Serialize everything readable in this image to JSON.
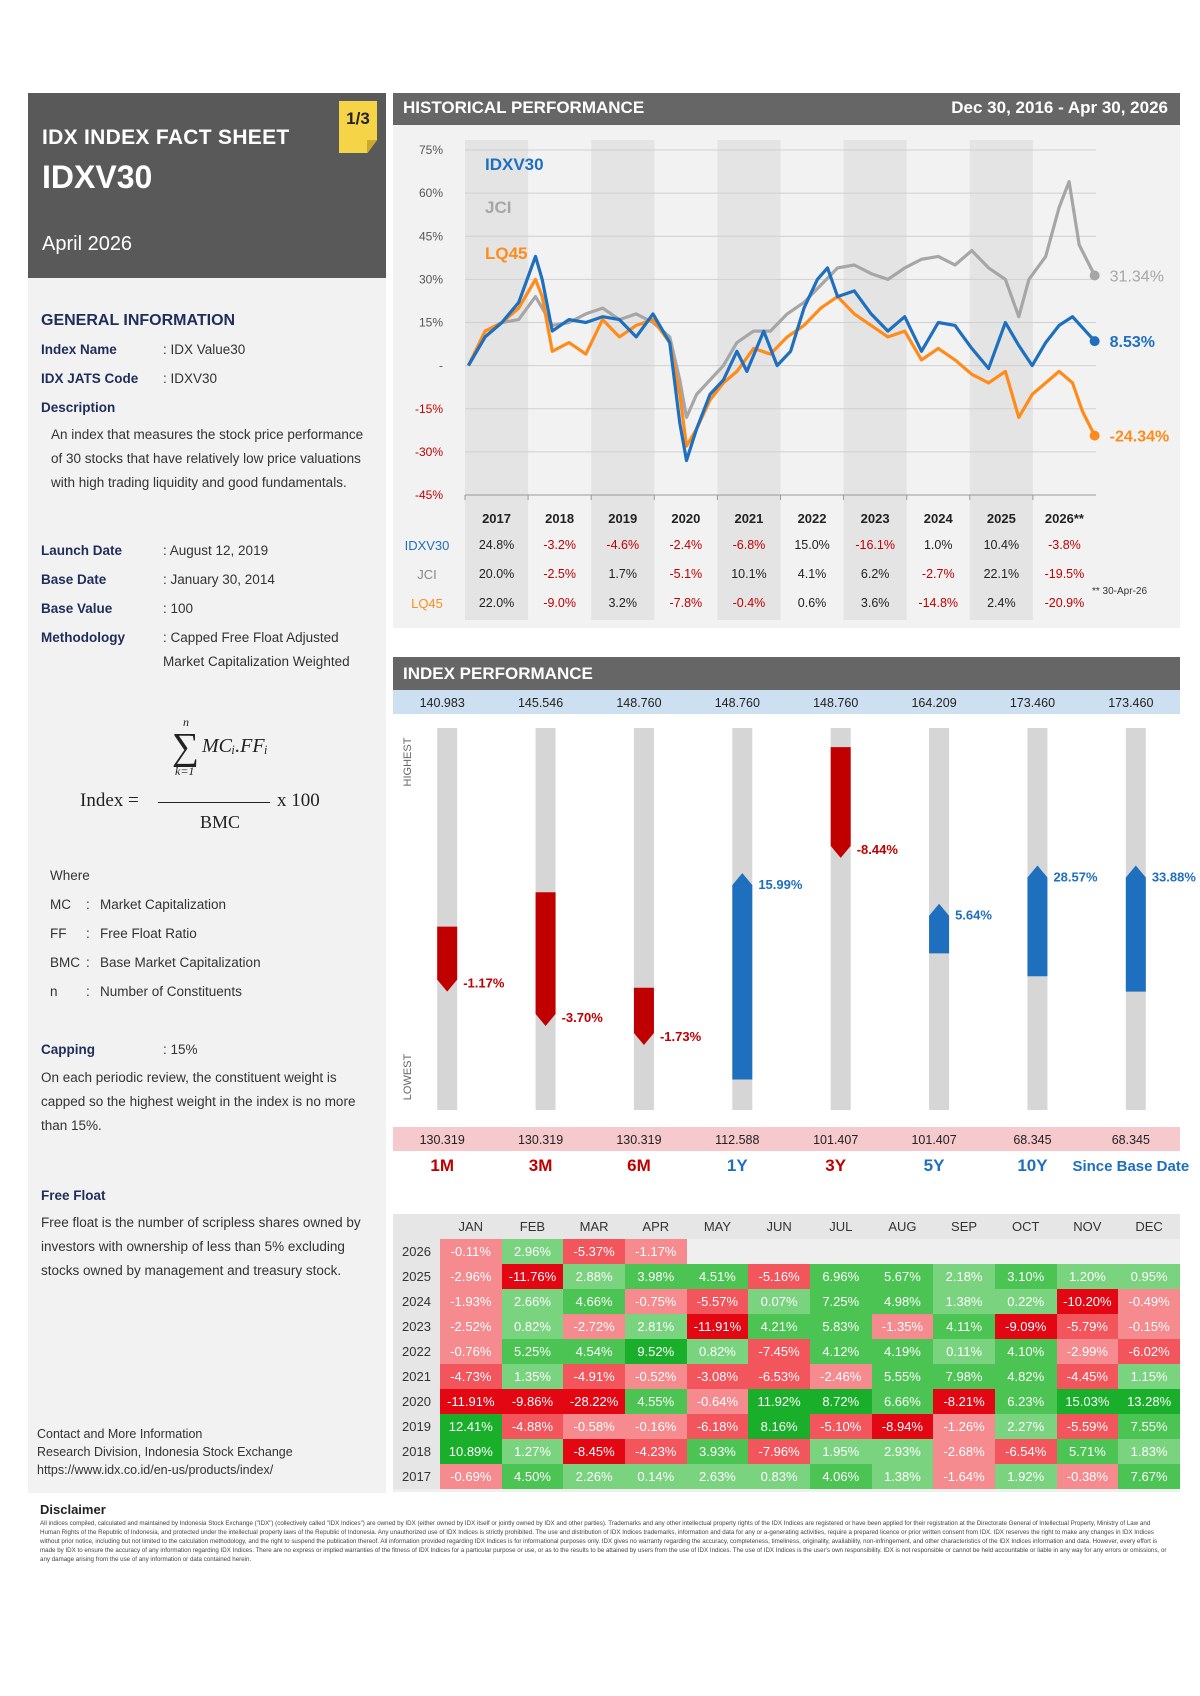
{
  "header": {
    "title": "IDX INDEX FACT SHEET",
    "code": "IDXV30",
    "month": "April 2026",
    "page": "1/3"
  },
  "general": {
    "section_title": "GENERAL INFORMATION",
    "index_name_label": "Index Name",
    "index_name": ": IDX Value30",
    "jats_label": "IDX JATS Code",
    "jats": ": IDXV30",
    "description_label": "Description",
    "description": "An index that measures the stock price performance of 30 stocks that have relatively low price valuations with high trading liquidity and good fundamentals.",
    "launch_label": "Launch Date",
    "launch": ": August 12, 2019",
    "base_date_label": "Base Date",
    "base_date": ": January 30, 2014",
    "base_value_label": "Base Value",
    "base_value": ": 100",
    "methodology_label": "Methodology",
    "methodology": ": Capped Free Float Adjusted Market Capitalization Weighted"
  },
  "formula": {
    "n": "n",
    "k": "k=1",
    "numerator": "MCᵢ.FFᵢ",
    "lhs": "Index =",
    "denominator": "BMC",
    "rhs": "x 100"
  },
  "where": {
    "title": "Where",
    "rows": [
      {
        "sym": "MC",
        "sep": ":",
        "desc": "Market Capitalization"
      },
      {
        "sym": "FF",
        "sep": ":",
        "desc": "Free Float Ratio"
      },
      {
        "sym": "BMC",
        "sep": ":",
        "desc": "Base Market Capitalization"
      },
      {
        "sym": "n",
        "sep": ":",
        "desc": "Number of Constituents"
      }
    ]
  },
  "capping": {
    "label": "Capping",
    "value": ": 15%",
    "text": "On each periodic review, the constituent weight is capped so the highest weight in the index is no more than 15%."
  },
  "free_float": {
    "label": "Free Float",
    "text": "Free float is the number of scripless shares owned by investors with ownership of less than 5% excluding stocks owned by management and treasury stock."
  },
  "contact": {
    "title": "Contact and More Information",
    "org": "Research Division, Indonesia Stock Exchange",
    "url": "https://www.idx.co.id/en-us/products/index/"
  },
  "historical": {
    "title": "HISTORICAL PERFORMANCE",
    "range": "Dec 30, 2016 - Apr 30, 2026",
    "footnote": "** 30-Apr-26"
  },
  "chart_data": {
    "type": "line",
    "ylim": [
      -45,
      75
    ],
    "yticks": [
      "75%",
      "60%",
      "45%",
      "30%",
      "15%",
      "-",
      "-15%",
      "-30%",
      "-45%"
    ],
    "years": [
      "2017",
      "2018",
      "2019",
      "2020",
      "2021",
      "2022",
      "2023",
      "2024",
      "2025",
      "2026**"
    ],
    "series": [
      {
        "name": "IDXV30",
        "color": "#1f6fbf",
        "end_label": "8.53%",
        "x": [
          2017.0,
          2017.25,
          2017.5,
          2017.75,
          2018.0,
          2018.1,
          2018.25,
          2018.5,
          2018.75,
          2019.0,
          2019.25,
          2019.5,
          2019.75,
          2020.0,
          2020.15,
          2020.25,
          2020.4,
          2020.6,
          2020.8,
          2021.0,
          2021.15,
          2021.4,
          2021.6,
          2021.8,
          2022.0,
          2022.2,
          2022.35,
          2022.5,
          2022.75,
          2023.0,
          2023.25,
          2023.5,
          2023.75,
          2024.0,
          2024.25,
          2024.5,
          2024.75,
          2025.0,
          2025.2,
          2025.4,
          2025.6,
          2025.8,
          2026.0,
          2026.33
        ],
        "y": [
          0,
          10,
          15,
          22,
          38,
          30,
          12,
          16,
          15,
          17,
          16,
          10,
          18,
          8,
          -20,
          -33,
          -22,
          -10,
          -5,
          5,
          -2,
          12,
          0,
          5,
          20,
          30,
          34,
          24,
          26,
          18,
          12,
          17,
          5,
          15,
          14,
          6,
          -1,
          15,
          7,
          0,
          8,
          14,
          17,
          8.53
        ]
      },
      {
        "name": "JCI",
        "color": "#a6a6a6",
        "end_label": "31.34%",
        "x": [
          2017.0,
          2017.25,
          2017.5,
          2017.75,
          2018.0,
          2018.1,
          2018.25,
          2018.5,
          2018.75,
          2019.0,
          2019.25,
          2019.5,
          2019.75,
          2020.0,
          2020.15,
          2020.25,
          2020.4,
          2020.6,
          2020.8,
          2021.0,
          2021.25,
          2021.5,
          2021.75,
          2022.0,
          2022.25,
          2022.5,
          2022.75,
          2023.0,
          2023.25,
          2023.5,
          2023.75,
          2024.0,
          2024.25,
          2024.5,
          2024.75,
          2025.0,
          2025.2,
          2025.35,
          2025.6,
          2025.8,
          2025.95,
          2026.1,
          2026.33
        ],
        "y": [
          0,
          10,
          15,
          16,
          24,
          20,
          14,
          15,
          18,
          20,
          16,
          18,
          15,
          10,
          -5,
          -18,
          -10,
          -5,
          0,
          8,
          12,
          12,
          18,
          22,
          28,
          34,
          35,
          32,
          30,
          34,
          37,
          38,
          35,
          40,
          34,
          30,
          17,
          30,
          38,
          55,
          64,
          42,
          31.34
        ]
      },
      {
        "name": "LQ45",
        "color": "#ff8c1a",
        "end_label": "-24.34%",
        "x": [
          2017.0,
          2017.25,
          2017.5,
          2017.75,
          2018.0,
          2018.1,
          2018.25,
          2018.5,
          2018.75,
          2019.0,
          2019.25,
          2019.5,
          2019.75,
          2020.0,
          2020.15,
          2020.25,
          2020.4,
          2020.6,
          2020.8,
          2021.0,
          2021.25,
          2021.5,
          2021.75,
          2022.0,
          2022.25,
          2022.5,
          2022.75,
          2023.0,
          2023.25,
          2023.5,
          2023.75,
          2024.0,
          2024.25,
          2024.5,
          2024.75,
          2025.0,
          2025.2,
          2025.4,
          2025.6,
          2025.8,
          2026.0,
          2026.15,
          2026.33
        ],
        "y": [
          0,
          12,
          15,
          20,
          30,
          24,
          5,
          8,
          4,
          16,
          10,
          14,
          16,
          8,
          -10,
          -28,
          -22,
          -12,
          -6,
          -2,
          6,
          4,
          10,
          14,
          20,
          24,
          18,
          14,
          10,
          12,
          2,
          6,
          2,
          -3,
          -6,
          -2,
          -18,
          -10,
          -6,
          -2,
          -6,
          -16,
          -24.34
        ]
      }
    ],
    "table": {
      "headers": [
        "",
        "2017",
        "2018",
        "2019",
        "2020",
        "2021",
        "2022",
        "2023",
        "2024",
        "2025",
        "2026**"
      ],
      "rows": [
        {
          "name": "IDXV30",
          "color": "#1f6fbf",
          "values": [
            "24.8%",
            "-3.2%",
            "-4.6%",
            "-2.4%",
            "-6.8%",
            "15.0%",
            "-16.1%",
            "1.0%",
            "10.4%",
            "-3.8%"
          ]
        },
        {
          "name": "JCI",
          "color": "#888888",
          "values": [
            "20.0%",
            "-2.5%",
            "1.7%",
            "-5.1%",
            "10.1%",
            "4.1%",
            "6.2%",
            "-2.7%",
            "22.1%",
            "-19.5%"
          ]
        },
        {
          "name": "LQ45",
          "color": "#ff8c1a",
          "values": [
            "22.0%",
            "-9.0%",
            "3.2%",
            "-7.8%",
            "-0.4%",
            "0.6%",
            "3.6%",
            "-14.8%",
            "2.4%",
            "-20.9%"
          ]
        }
      ]
    }
  },
  "index_performance": {
    "title": "INDEX PERFORMANCE",
    "highest_label": "HIGHEST",
    "lowest_label": "LOWEST",
    "periods": [
      {
        "label": "1M",
        "high": "140.983",
        "low": "130.319",
        "ret": "-1.17%",
        "ret_value": -1.17,
        "pos_top": 0.52,
        "pos_bot": 0.69
      },
      {
        "label": "3M",
        "high": "145.546",
        "low": "130.319",
        "ret": "-3.70%",
        "ret_value": -3.7,
        "pos_top": 0.43,
        "pos_bot": 0.78
      },
      {
        "label": "6M",
        "high": "148.760",
        "low": "130.319",
        "ret": "-1.73%",
        "ret_value": -1.73,
        "pos_top": 0.68,
        "pos_bot": 0.83
      },
      {
        "label": "1Y",
        "high": "148.760",
        "low": "112.588",
        "ret": "15.99%",
        "ret_value": 15.99,
        "pos_top": 0.38,
        "pos_bot": 0.92
      },
      {
        "label": "3Y",
        "high": "148.760",
        "low": "101.407",
        "ret": "-8.44%",
        "ret_value": -8.44,
        "pos_top": 0.05,
        "pos_bot": 0.34
      },
      {
        "label": "5Y",
        "high": "164.209",
        "low": "101.407",
        "ret": "5.64%",
        "ret_value": 5.64,
        "pos_top": 0.46,
        "pos_bot": 0.59
      },
      {
        "label": "10Y",
        "high": "173.460",
        "low": "68.345",
        "ret": "28.57%",
        "ret_value": 28.57,
        "pos_top": 0.36,
        "pos_bot": 0.65
      },
      {
        "label": "Since Base Date",
        "high": "173.460",
        "low": "68.345",
        "ret": "33.88%",
        "ret_value": 33.88,
        "pos_top": 0.36,
        "pos_bot": 0.69
      }
    ]
  },
  "monthly": {
    "months": [
      "JAN",
      "FEB",
      "MAR",
      "APR",
      "MAY",
      "JUN",
      "JUL",
      "AUG",
      "SEP",
      "OCT",
      "NOV",
      "DEC"
    ],
    "rows": [
      {
        "year": "2026",
        "values": [
          "-0.11%",
          "2.96%",
          "-5.37%",
          "-1.17%",
          "",
          "",
          "",
          "",
          "",
          "",
          "",
          ""
        ]
      },
      {
        "year": "2025",
        "values": [
          "-2.96%",
          "-11.76%",
          "2.88%",
          "3.98%",
          "4.51%",
          "-5.16%",
          "6.96%",
          "5.67%",
          "2.18%",
          "3.10%",
          "1.20%",
          "0.95%"
        ]
      },
      {
        "year": "2024",
        "values": [
          "-1.93%",
          "2.66%",
          "4.66%",
          "-0.75%",
          "-5.57%",
          "0.07%",
          "7.25%",
          "4.98%",
          "1.38%",
          "0.22%",
          "-10.20%",
          "-0.49%"
        ]
      },
      {
        "year": "2023",
        "values": [
          "-2.52%",
          "0.82%",
          "-2.72%",
          "2.81%",
          "-11.91%",
          "4.21%",
          "5.83%",
          "-1.35%",
          "4.11%",
          "-9.09%",
          "-5.79%",
          "-0.15%"
        ]
      },
      {
        "year": "2022",
        "values": [
          "-0.76%",
          "5.25%",
          "4.54%",
          "9.52%",
          "0.82%",
          "-7.45%",
          "4.12%",
          "4.19%",
          "0.11%",
          "4.10%",
          "-2.99%",
          "-6.02%"
        ]
      },
      {
        "year": "2021",
        "values": [
          "-4.73%",
          "1.35%",
          "-4.91%",
          "-0.52%",
          "-3.08%",
          "-6.53%",
          "-2.46%",
          "5.55%",
          "7.98%",
          "4.82%",
          "-4.45%",
          "1.15%"
        ]
      },
      {
        "year": "2020",
        "values": [
          "-11.91%",
          "-9.86%",
          "-28.22%",
          "4.55%",
          "-0.64%",
          "11.92%",
          "8.72%",
          "6.66%",
          "-8.21%",
          "6.23%",
          "15.03%",
          "13.28%"
        ]
      },
      {
        "year": "2019",
        "values": [
          "12.41%",
          "-4.88%",
          "-0.58%",
          "-0.16%",
          "-6.18%",
          "8.16%",
          "-5.10%",
          "-8.94%",
          "-1.26%",
          "2.27%",
          "-5.59%",
          "7.55%"
        ]
      },
      {
        "year": "2018",
        "values": [
          "10.89%",
          "1.27%",
          "-8.45%",
          "-4.23%",
          "3.93%",
          "-7.96%",
          "1.95%",
          "2.93%",
          "-2.68%",
          "-6.54%",
          "5.71%",
          "1.83%"
        ]
      },
      {
        "year": "2017",
        "values": [
          "-0.69%",
          "4.50%",
          "2.26%",
          "0.14%",
          "2.63%",
          "0.83%",
          "4.06%",
          "1.38%",
          "-1.64%",
          "1.92%",
          "-0.38%",
          "7.67%"
        ]
      }
    ]
  },
  "disclaimer": {
    "title": "Disclaimer",
    "text": "All indices compiled, calculated and maintained by Indonesia Stock Exchange (\"IDX\") (collectively called \"IDX Indices\") are owned by IDX (either owned by IDX itself or jointly owned by IDX and other parties). Trademarks and any other intellectual property rights of the IDX Indices are registered or have been applied for their registration at the Directorate General of Intellectual Property, Ministry of Law and Human Rights of the Republic of Indonesia, and protected under the intellectual property laws of the Republic of Indonesia. Any unauthorized use of IDX Indices is strictly prohibited. The use and distribution of IDX Indices trademarks, information and data for any or a-generating activities, require a prepared licence or prior written consent from IDX. IDX reserves the right to make any changes in IDX Indices without prior notice, including but not limited to the calculation methodology, and the right to suspend the publication thereof. All information provided regarding IDX Indices is for informational purposes only. IDX gives no warranty regarding the accuracy, completeness, timeliness, originality, availability, non-infringement, and other characteristics of the IDX Indices information and data. However, every effort is made by IDX to ensure the accuracy of any information regarding IDX Indices. There are no express or implied warranties of the fitness of IDX Indices for a particular purpose or use, or as to the results to be attained by users from the use of IDX Indices. The use of IDX Indices is the user's own responsibility. IDX is not responsible or cannot be held accountable or liable in any way for any errors or omissions, or any damage arising from the use of any information or data contained herein."
  }
}
